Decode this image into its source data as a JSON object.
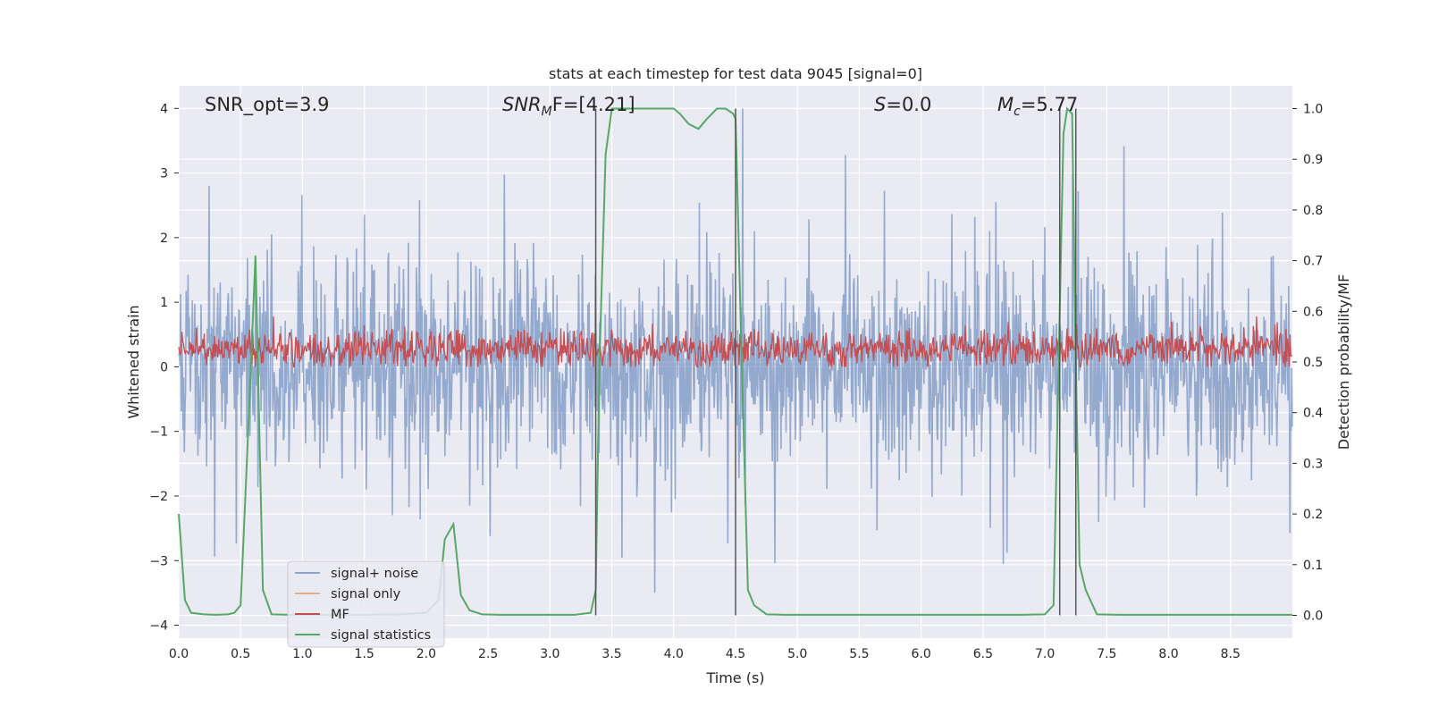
{
  "chart_data": {
    "type": "line",
    "title": "stats at each timestep for test data 9045 [signal=0]",
    "xlabel": "Time (s)",
    "ylabel": "Whitened strain",
    "y2label": "Detection probability/MF",
    "xlim": [
      0.0,
      9.0
    ],
    "ylim": [
      -4.2,
      4.35
    ],
    "y2lim": [
      -0.045,
      1.045
    ],
    "xticks": [
      "0.0",
      "0.5",
      "1.0",
      "1.5",
      "2.0",
      "2.5",
      "3.0",
      "3.5",
      "4.0",
      "4.5",
      "5.0",
      "5.5",
      "6.0",
      "6.5",
      "7.0",
      "7.5",
      "8.0",
      "8.5"
    ],
    "yticks": [
      "4",
      "3",
      "2",
      "1",
      "0",
      "−1",
      "−2",
      "−3",
      "−4"
    ],
    "y2ticks": [
      "1.0",
      "0.9",
      "0.8",
      "0.7",
      "0.6",
      "0.5",
      "0.4",
      "0.3",
      "0.2",
      "0.1",
      "0.0"
    ],
    "grid": true,
    "legend_position": "lower-left",
    "annotations": {
      "snr_opt": "SNR_opt=3.9",
      "snr_mf_base": "SNR",
      "snr_mf_sub": "M",
      "snr_mf_tail": "F=[4.21]",
      "s_var": "S",
      "s_tail": "=0.0",
      "mc_var": "M",
      "mc_sub": "c",
      "mc_tail": "=5.77"
    },
    "vlines_x": [
      3.37,
      4.5,
      7.12,
      7.25
    ],
    "series": [
      {
        "name": "signal+ noise",
        "color": "#4c72b0",
        "axis": "left",
        "description_points": {
          "x_start": 0.0,
          "x_end": 9.0,
          "typical_range": [
            -1.5,
            1.6
          ],
          "peak_range": [
            -3.7,
            4.0
          ]
        }
      },
      {
        "name": "signal only",
        "color": "#dd8452",
        "axis": "left",
        "values": []
      },
      {
        "name": "MF",
        "color": "#c44e52",
        "axis": "left",
        "description_points": {
          "x_start": 0.0,
          "x_end": 9.0,
          "typical_range": [
            0.0,
            0.6
          ],
          "peak_range": [
            0.0,
            1.0
          ]
        }
      },
      {
        "name": "signal statistics",
        "color": "#55a868",
        "axis": "right",
        "x": [
          0.0,
          0.05,
          0.1,
          0.2,
          0.3,
          0.4,
          0.45,
          0.5,
          0.55,
          0.62,
          0.68,
          0.75,
          0.9,
          1.0,
          1.2,
          1.5,
          1.8,
          2.0,
          2.1,
          2.15,
          2.22,
          2.28,
          2.35,
          2.45,
          2.6,
          2.8,
          3.0,
          3.2,
          3.33,
          3.37,
          3.4,
          3.45,
          3.5,
          3.6,
          3.8,
          4.0,
          4.05,
          4.12,
          4.2,
          4.27,
          4.35,
          4.42,
          4.48,
          4.5,
          4.55,
          4.6,
          4.65,
          4.75,
          4.9,
          5.2,
          5.6,
          6.0,
          6.5,
          6.8,
          7.0,
          7.07,
          7.12,
          7.15,
          7.18,
          7.22,
          7.25,
          7.28,
          7.33,
          7.42,
          7.6,
          8.0,
          8.5,
          9.0
        ],
        "y": [
          0.2,
          0.03,
          0.005,
          0.002,
          0.001,
          0.002,
          0.005,
          0.02,
          0.3,
          0.71,
          0.05,
          0.002,
          0.001,
          0.001,
          0.001,
          0.001,
          0.002,
          0.005,
          0.03,
          0.15,
          0.18,
          0.04,
          0.01,
          0.002,
          0.001,
          0.001,
          0.001,
          0.001,
          0.005,
          0.05,
          0.5,
          0.91,
          1.0,
          1.0,
          1.0,
          1.0,
          0.99,
          0.97,
          0.96,
          0.98,
          1.0,
          1.0,
          0.99,
          0.98,
          0.5,
          0.05,
          0.02,
          0.002,
          0.001,
          0.001,
          0.001,
          0.001,
          0.001,
          0.001,
          0.002,
          0.02,
          0.6,
          0.95,
          1.0,
          0.99,
          0.5,
          0.1,
          0.05,
          0.002,
          0.001,
          0.001,
          0.001,
          0.001
        ]
      }
    ]
  }
}
